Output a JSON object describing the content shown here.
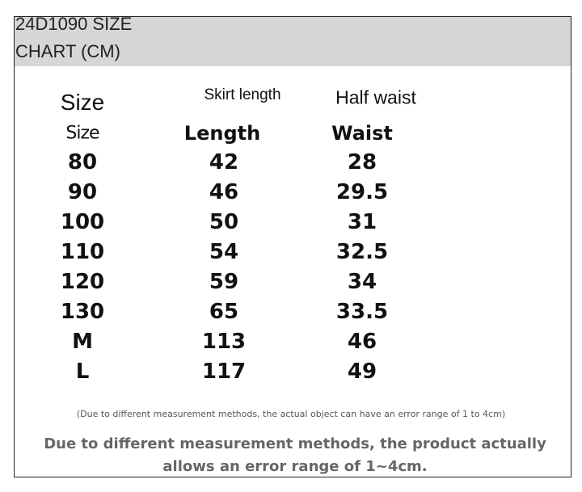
{
  "header": {
    "title_lines": [
      "24D1090 SIZE",
      "CHART (CM)"
    ]
  },
  "table": {
    "caption_headers": [
      "Size",
      "Skirt length",
      "Half waist"
    ],
    "headers": [
      "Size",
      "Length",
      "Waist"
    ],
    "rows": [
      [
        "80",
        42,
        28
      ],
      [
        "90",
        46,
        29.5
      ],
      [
        "100",
        50,
        31
      ],
      [
        "110",
        54,
        32.5
      ],
      [
        "120",
        59,
        34
      ],
      [
        "130",
        65,
        33.5
      ],
      [
        "M",
        113,
        46
      ],
      [
        "L",
        117,
        49
      ]
    ]
  },
  "notes": {
    "small": "(Due to different measurement methods, the actual object can have an error range of 1 to 4cm)",
    "main": "Due to different measurement methods, the product actually allows an error range of 1~4cm."
  }
}
